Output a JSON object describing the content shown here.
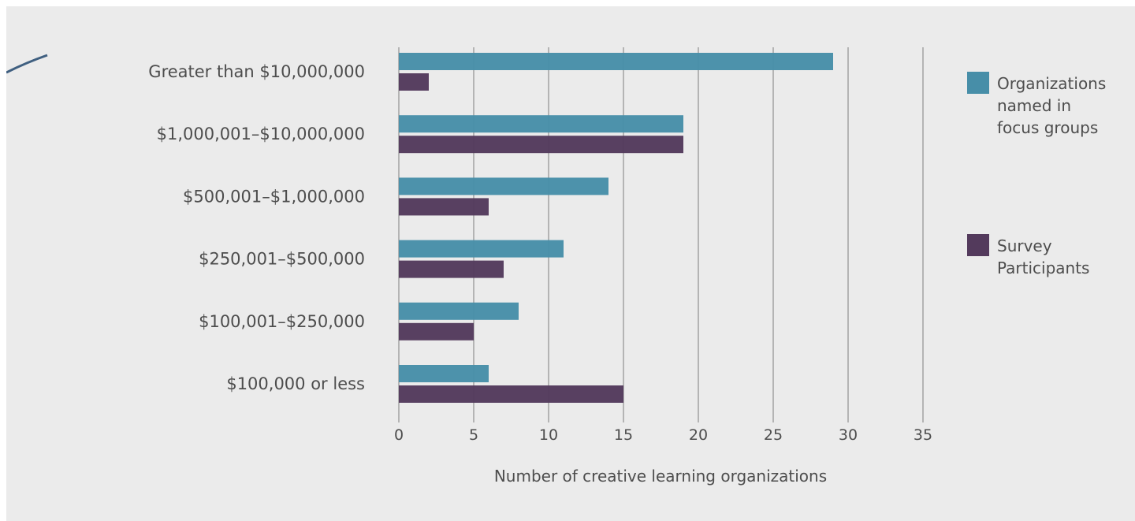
{
  "chart_data": {
    "type": "bar",
    "orientation": "horizontal",
    "categories": [
      "Greater than $10,000,000",
      "$1,000,001–$10,000,000",
      "$500,001–$1,000,000",
      "$250,001–$500,000",
      "$100,001–$250,000",
      "$100,000 or less"
    ],
    "series": [
      {
        "name": "Organizations named in focus groups",
        "legend_lines": [
          "Organizations",
          "named in",
          "focus groups"
        ],
        "color": "#478ea8",
        "values": [
          29,
          19,
          14,
          11,
          8,
          6
        ]
      },
      {
        "name": "Survey Participants",
        "legend_lines": [
          "Survey",
          "Participants"
        ],
        "color": "#533a5c",
        "values": [
          2,
          19,
          6,
          7,
          5,
          15
        ]
      }
    ],
    "xlabel": "Number of creative learning organizations",
    "ylabel": "",
    "title": "",
    "xlim": [
      0,
      35
    ],
    "xticks": [
      0,
      5,
      10,
      15,
      20,
      25,
      30,
      35
    ],
    "grid": "vertical",
    "legend_position": "right"
  },
  "colors": {
    "background": "#ebebeb",
    "gridline": "#b4b4b4",
    "text": "#4d4d4d"
  }
}
